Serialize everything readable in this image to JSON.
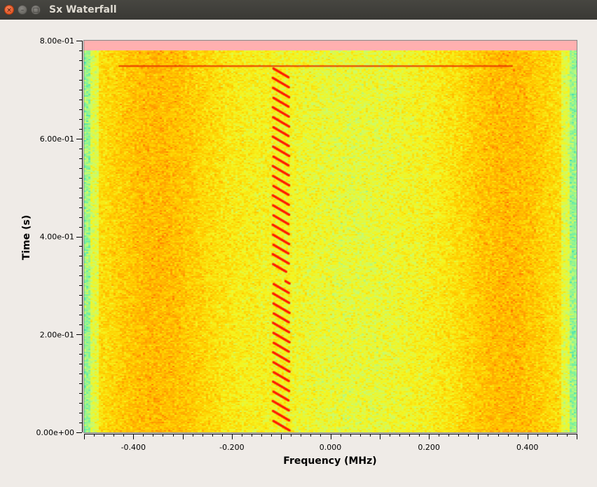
{
  "window": {
    "title": "Sx Waterfall",
    "close_glyph": "×",
    "minimize_glyph": "–",
    "maximize_glyph": "□"
  },
  "chart_data": {
    "type": "heatmap",
    "title": "",
    "xlabel": "Frequency (MHz)",
    "ylabel": "Time (s)",
    "xlim": [
      -0.5,
      0.5
    ],
    "ylim": [
      0.0,
      0.8
    ],
    "x_ticks": [
      -0.4,
      -0.2,
      0.0,
      0.2,
      0.4
    ],
    "x_tick_labels": [
      "-0.400",
      "-0.200",
      "0.000",
      "0.200",
      "0.400"
    ],
    "y_ticks": [
      0.0,
      0.2,
      0.4,
      0.6,
      0.8
    ],
    "y_tick_labels": [
      "0.00e+00",
      "2.00e-01",
      "4.00e-01",
      "6.00e-01",
      "8.00e-01"
    ],
    "unfilled_region_ylim": [
      0.78,
      0.8
    ],
    "unfilled_region_color": "#ffb0b0",
    "signal": {
      "description_colors": "red chirp trace",
      "freq_range_mhz": [
        -0.117,
        -0.083
      ],
      "chirp_period_s": 0.02,
      "pause_interval_s": [
        0.309,
        0.327
      ],
      "burst_line_time_s": 0.748,
      "burst_line_freq_mhz": [
        -0.43,
        0.37
      ],
      "color": "#ff1a00"
    },
    "colormap": [
      "#2ad3c0",
      "#7af0a0",
      "#c8fb70",
      "#f5f520",
      "#ffd000",
      "#ffa000",
      "#ff4c00",
      "#ff0000"
    ],
    "grid": false
  }
}
